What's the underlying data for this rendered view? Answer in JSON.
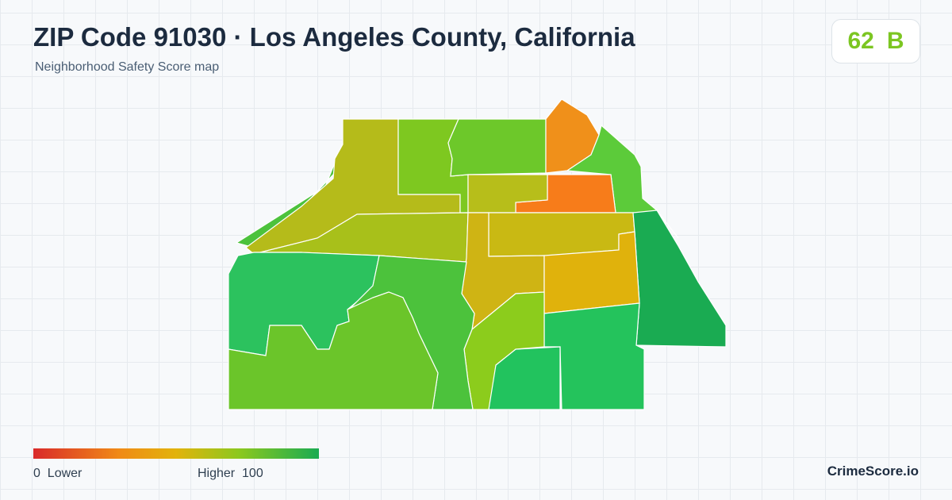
{
  "header": {
    "title": "ZIP Code 91030 · Los Angeles County, California",
    "subtitle": "Neighborhood Safety Score map"
  },
  "score": {
    "value": 62,
    "grade": "B"
  },
  "legend": {
    "min": 0,
    "min_label": "Lower",
    "max_label": "Higher",
    "max": 100
  },
  "brand": "CrimeScore.io"
}
